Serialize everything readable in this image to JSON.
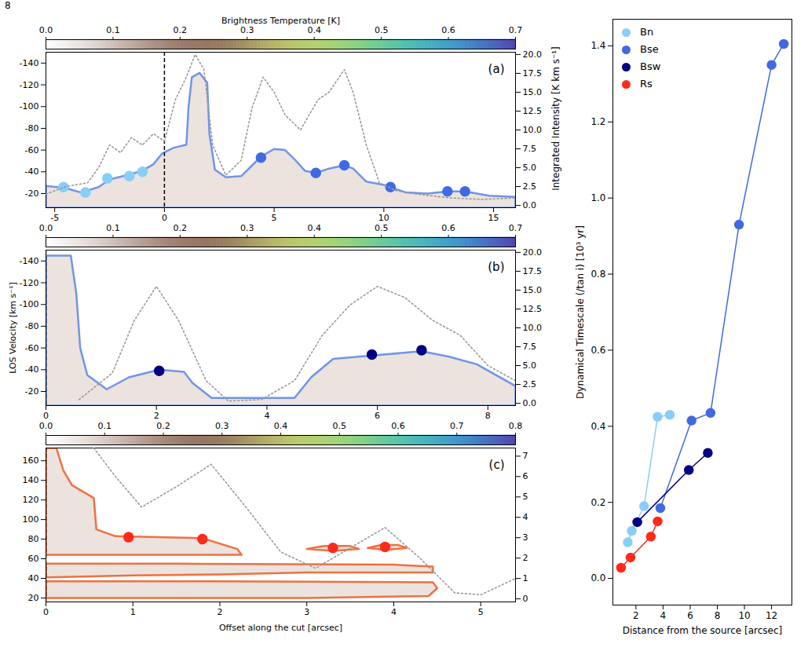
{
  "page_number": "8",
  "chart_data": [
    {
      "type": "position-velocity",
      "panel": "(a)",
      "colorbar": {
        "label": "Brightness Temperature [K]",
        "range": [
          0,
          0.7
        ],
        "ticks": [
          {
            "value": 0,
            "label": "0.0"
          },
          0.1,
          0.2,
          0.3,
          0.4,
          0.5,
          0.6,
          0.7
        ]
      },
      "xlim": [
        -5.4,
        16
      ],
      "xticks": [
        -5,
        0,
        5,
        10,
        15
      ],
      "ylim": [
        -7,
        -150
      ],
      "yticks": [
        -140,
        -120,
        -100,
        -80,
        -60,
        -40,
        -20
      ],
      "y2label": "Integrated Intensity [K km s⁻¹]",
      "y2lim": [
        -0.3,
        20.3
      ],
      "y2ticks": [
        {
          "value": 0,
          "label": "0.0"
        },
        2.5,
        {
          "value": 5,
          "label": "5.0"
        },
        7.5,
        {
          "value": 10,
          "label": "10.0"
        },
        12.5,
        {
          "value": 15,
          "label": "15.0"
        },
        17.5,
        {
          "value": 20,
          "label": "20.0"
        }
      ],
      "source_offset": 0,
      "outline": {
        "color": "#6f95e8",
        "polygons": [
          [
            [
              -5.4,
              -7
            ],
            [
              -5.4,
              -27
            ],
            [
              -4.5,
              -25
            ],
            [
              -3.8,
              -21
            ],
            [
              -3,
              -26
            ],
            [
              -2.5,
              -33
            ],
            [
              -1.7,
              -37
            ],
            [
              -1.0,
              -41
            ],
            [
              -0.5,
              -47
            ],
            [
              -0.1,
              -57
            ],
            [
              0.4,
              -62
            ],
            [
              1.0,
              -65
            ],
            [
              1.1,
              -100
            ],
            [
              1.25,
              -127
            ],
            [
              1.6,
              -131
            ],
            [
              1.95,
              -122
            ],
            [
              2.05,
              -75
            ],
            [
              2.3,
              -42
            ],
            [
              2.8,
              -35
            ],
            [
              3.5,
              -36
            ],
            [
              4.0,
              -46
            ],
            [
              4.4,
              -54
            ],
            [
              5.0,
              -61
            ],
            [
              5.5,
              -60
            ],
            [
              6.0,
              -50
            ],
            [
              6.4,
              -41
            ],
            [
              6.9,
              -39
            ],
            [
              7.5,
              -43
            ],
            [
              8.2,
              -46
            ],
            [
              8.6,
              -43
            ],
            [
              9.2,
              -31
            ],
            [
              10.0,
              -28
            ],
            [
              10.3,
              -26
            ],
            [
              11.0,
              -21
            ],
            [
              12.0,
              -20
            ],
            [
              12.9,
              -22
            ],
            [
              13.7,
              -22
            ],
            [
              14.8,
              -18
            ],
            [
              16,
              -17
            ],
            [
              16,
              -7
            ]
          ]
        ]
      },
      "intensity": {
        "color": "#999999",
        "x": [
          -5.4,
          -4.5,
          -3.5,
          -3,
          -2.5,
          -2,
          -1.5,
          -1,
          -0.5,
          0,
          0.5,
          1.0,
          1.4,
          1.8,
          2.2,
          2.8,
          3.5,
          4.0,
          4.5,
          5.0,
          5.5,
          6.2,
          7.0,
          7.5,
          8.2,
          8.6,
          9.2,
          9.8,
          10.5,
          11.5,
          13,
          14.5,
          16
        ],
        "values": [
          1.5,
          2.5,
          3,
          5,
          8,
          7,
          9,
          8,
          9.5,
          8.5,
          14,
          17,
          20,
          18,
          8,
          4,
          6,
          13,
          17,
          15,
          12,
          10,
          14,
          15,
          18,
          15,
          8,
          3,
          2,
          1.5,
          1,
          0.8,
          1
        ]
      },
      "series": [
        {
          "name": "Bn",
          "color": "#87cefa",
          "x": [
            -4.6,
            -3.6,
            -2.6,
            -1.6,
            -1.0
          ],
          "y": [
            -26,
            -21,
            -34,
            -36,
            -40
          ]
        },
        {
          "name": "Bse",
          "color": "#4169e1",
          "x": [
            4.4,
            6.9,
            8.2,
            10.3,
            12.9,
            13.7
          ],
          "y": [
            -53,
            -39,
            -46,
            -26,
            -22,
            -22
          ]
        }
      ]
    },
    {
      "type": "position-velocity",
      "panel": "(b)",
      "colorbar": {
        "range": [
          0,
          0.7
        ],
        "ticks": [
          {
            "value": 0,
            "label": "0.0"
          },
          0.1,
          0.2,
          0.3,
          0.4,
          0.5,
          0.6,
          0.7
        ]
      },
      "xlim": [
        0,
        8.5
      ],
      "xticks": [
        0,
        2,
        4,
        6,
        8
      ],
      "ylabel": "LOS Velocity [km s⁻¹]",
      "ylim": [
        -7,
        -150
      ],
      "yticks": [
        -140,
        -120,
        -100,
        -80,
        -60,
        -40,
        -20
      ],
      "y2lim": [
        -0.3,
        20.3
      ],
      "y2ticks": [
        {
          "value": 0,
          "label": "0.0"
        },
        2.5,
        {
          "value": 5,
          "label": "5.0"
        },
        7.5,
        {
          "value": 10,
          "label": "10.0"
        },
        12.5,
        {
          "value": 15,
          "label": "15.0"
        },
        17.5,
        {
          "value": 20,
          "label": "20.0"
        }
      ],
      "source_offset": 0,
      "outline": {
        "color": "#6f95e8",
        "polygons": [
          [
            [
              0,
              -7
            ],
            [
              0,
              -145
            ],
            [
              0.45,
              -145
            ],
            [
              0.55,
              -110
            ],
            [
              0.62,
              -60
            ],
            [
              0.75,
              -35
            ],
            [
              1.1,
              -22
            ],
            [
              1.5,
              -33
            ],
            [
              2.05,
              -40
            ],
            [
              2.5,
              -38
            ],
            [
              2.65,
              -28
            ],
            [
              3.0,
              -14
            ],
            [
              4.5,
              -14
            ],
            [
              4.8,
              -33
            ],
            [
              5.2,
              -50
            ],
            [
              5.9,
              -53
            ],
            [
              6.8,
              -57
            ],
            [
              7.3,
              -52
            ],
            [
              7.8,
              -45
            ],
            [
              8.5,
              -25
            ],
            [
              8.5,
              -7
            ]
          ]
        ]
      },
      "intensity": {
        "color": "#999999",
        "x": [
          0.6,
          1.2,
          1.6,
          2.0,
          2.4,
          2.9,
          3.3,
          3.9,
          4.5,
          5.0,
          5.5,
          6.0,
          6.5,
          7.0,
          7.5,
          8.0,
          8.5
        ],
        "values": [
          0.5,
          4,
          11,
          15.5,
          11,
          3,
          0.3,
          0.5,
          3,
          9,
          13,
          15.5,
          14,
          11,
          9,
          5,
          3
        ]
      },
      "series": [
        {
          "name": "Bsw",
          "color": "#000080",
          "x": [
            2.05,
            5.9,
            6.8
          ],
          "y": [
            -39,
            -54,
            -58
          ]
        }
      ]
    },
    {
      "type": "position-velocity",
      "panel": "(c)",
      "colorbar": {
        "range": [
          0,
          0.8
        ],
        "ticks": [
          {
            "value": 0,
            "label": "0.0"
          },
          0.1,
          0.2,
          0.3,
          0.4,
          0.5,
          0.6,
          0.7,
          0.8
        ]
      },
      "xlabel": "Offset along the cut [arcsec]",
      "xlim": [
        0,
        5.4
      ],
      "xticks": [
        0,
        1,
        2,
        3,
        4,
        5
      ],
      "ylim": [
        16,
        173
      ],
      "yticks": [
        20,
        40,
        60,
        80,
        100,
        120,
        140,
        160
      ],
      "y2lim": [
        -0.15,
        7.4
      ],
      "y2ticks": [
        0,
        1,
        2,
        3,
        4,
        5,
        6,
        7
      ],
      "source_offset": 0,
      "outline": {
        "color": "#f07040",
        "polygons": [
          [
            [
              0,
              64
            ],
            [
              0,
              173
            ],
            [
              0.12,
              173
            ],
            [
              0.2,
              150
            ],
            [
              0.3,
              135
            ],
            [
              0.55,
              122
            ],
            [
              0.58,
              90
            ],
            [
              0.8,
              83
            ],
            [
              1.8,
              81
            ],
            [
              2.2,
              70
            ],
            [
              2.25,
              64
            ]
          ],
          [
            [
              0,
              41
            ],
            [
              0,
              55
            ],
            [
              1.5,
              55
            ],
            [
              4.0,
              54
            ],
            [
              4.45,
              52
            ],
            [
              4.45,
              46
            ],
            [
              4.0,
              46
            ],
            [
              3.0,
              46
            ],
            [
              2.0,
              44
            ],
            [
              1.0,
              43
            ]
          ],
          [
            [
              0,
              20
            ],
            [
              0,
              37
            ],
            [
              2.0,
              37
            ],
            [
              4.45,
              36
            ],
            [
              4.5,
              30
            ],
            [
              4.4,
              22
            ],
            [
              3.0,
              20
            ]
          ],
          [
            [
              3.0,
              70
            ],
            [
              3.2,
              73
            ],
            [
              3.5,
              73
            ],
            [
              3.6,
              70
            ],
            [
              3.3,
              68
            ]
          ],
          [
            [
              3.7,
              71
            ],
            [
              3.85,
              74
            ],
            [
              4.05,
              74
            ],
            [
              4.15,
              71
            ],
            [
              3.9,
              69
            ]
          ]
        ]
      },
      "intensity": {
        "color": "#999999",
        "x": [
          0.55,
          0.8,
          1.1,
          1.5,
          1.9,
          2.3,
          2.7,
          3.1,
          3.5,
          3.9,
          4.3,
          4.7,
          5.0,
          5.4
        ],
        "values": [
          7.4,
          6,
          4.5,
          5.5,
          6.6,
          4.5,
          2.3,
          1.5,
          2.5,
          3.5,
          2,
          0.3,
          0.2,
          1
        ]
      },
      "series": [
        {
          "name": "Rs",
          "color": "#ff2a1a",
          "x": [
            0.95,
            1.8,
            3.3,
            3.9
          ],
          "y": [
            82,
            80,
            71,
            72
          ]
        }
      ]
    },
    {
      "type": "line",
      "xlabel": "Distance from the source [arcsec]",
      "ylabel": "Dynamical Timescale (/tan i) [10³ yr]",
      "xlim": [
        0.3,
        13.5
      ],
      "xticks": [
        2,
        4,
        6,
        8,
        10,
        12
      ],
      "ylim": [
        -0.07,
        1.47
      ],
      "yticks": [
        {
          "value": 0,
          "label": "0.0"
        },
        0.2,
        0.4,
        0.6,
        0.8,
        {
          "value": 1,
          "label": "1.0"
        },
        1.2,
        1.4
      ],
      "legend": "top-left",
      "marker": "circle",
      "series": [
        {
          "name": "Bn",
          "color": "#87cefa",
          "x": [
            1.4,
            1.7,
            2.6,
            3.6,
            4.5
          ],
          "values": [
            0.095,
            0.125,
            0.19,
            0.425,
            0.43
          ]
        },
        {
          "name": "Bse",
          "color": "#4169e1",
          "x": [
            3.8,
            6.1,
            7.5,
            9.6,
            12.0,
            12.9
          ],
          "values": [
            0.185,
            0.415,
            0.435,
            0.93,
            1.35,
            1.405
          ]
        },
        {
          "name": "Bsw",
          "color": "#000080",
          "x": [
            2.1,
            5.9,
            7.3
          ],
          "values": [
            0.148,
            0.285,
            0.33
          ]
        },
        {
          "name": "Rs",
          "color": "#ff2a1a",
          "x": [
            0.9,
            1.6,
            3.1,
            3.6
          ],
          "values": [
            0.028,
            0.055,
            0.11,
            0.15
          ]
        }
      ]
    }
  ]
}
